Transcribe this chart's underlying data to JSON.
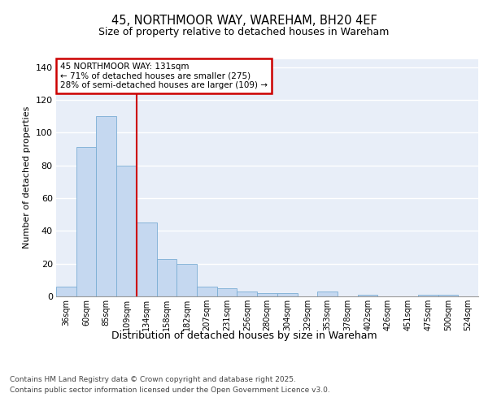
{
  "title_line1": "45, NORTHMOOR WAY, WAREHAM, BH20 4EF",
  "title_line2": "Size of property relative to detached houses in Wareham",
  "xlabel": "Distribution of detached houses by size in Wareham",
  "ylabel": "Number of detached properties",
  "categories": [
    "36sqm",
    "60sqm",
    "85sqm",
    "109sqm",
    "134sqm",
    "158sqm",
    "182sqm",
    "207sqm",
    "231sqm",
    "256sqm",
    "280sqm",
    "304sqm",
    "329sqm",
    "353sqm",
    "378sqm",
    "402sqm",
    "426sqm",
    "451sqm",
    "475sqm",
    "500sqm",
    "524sqm"
  ],
  "values": [
    6,
    91,
    110,
    80,
    45,
    23,
    20,
    6,
    5,
    3,
    2,
    2,
    0,
    3,
    0,
    1,
    0,
    0,
    1,
    1,
    0
  ],
  "bar_color": "#c5d8f0",
  "bar_edge_color": "#7aadd4",
  "vline_x": 3.5,
  "vline_color": "#cc0000",
  "annotation_text": "45 NORTHMOOR WAY: 131sqm\n← 71% of detached houses are smaller (275)\n28% of semi-detached houses are larger (109) →",
  "annotation_box_color": "#cc0000",
  "ylim": [
    0,
    145
  ],
  "yticks": [
    0,
    20,
    40,
    60,
    80,
    100,
    120,
    140
  ],
  "bg_color": "#e8eef8",
  "footer_line1": "Contains HM Land Registry data © Crown copyright and database right 2025.",
  "footer_line2": "Contains public sector information licensed under the Open Government Licence v3.0."
}
